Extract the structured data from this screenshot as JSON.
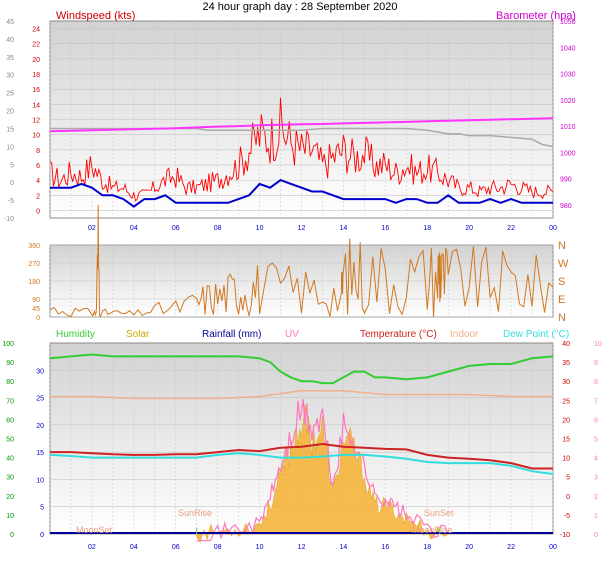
{
  "title": "24 hour graph day : 28 September 2020",
  "colors": {
    "wind_gust": "#ff0000",
    "wind_avg": "#0000cc",
    "barometer": "#ff33ff",
    "barometer_label": "#cc00cc",
    "gray_trace": "#aaaaaa",
    "direction": "#d07820",
    "humidity": "#33cc33",
    "solar": "#f5b030",
    "rainfall": "#000099",
    "uv": "#ff77bb",
    "temperature": "#cc2222",
    "indoor": "#f0b08a",
    "dewpoint": "#33dddd",
    "axis_blue": "#0000cc",
    "axis_gray": "#888888",
    "axis_green": "#009900",
    "axis_pink": "#ff77bb"
  },
  "time_ticks": [
    "02",
    "04",
    "06",
    "08",
    "10",
    "12",
    "14",
    "16",
    "18",
    "20",
    "22",
    "00"
  ],
  "chart_data": [
    {
      "type": "line",
      "id": "wind",
      "left_label": "Windspeed (kts)",
      "right_label": "Barometer (hpa)",
      "x_range_hours": [
        0,
        24
      ],
      "ylim_windspeed": [
        -1,
        25
      ],
      "ylim_barometer": [
        975,
        1050
      ],
      "ylim_gray_left": [
        -10,
        45
      ],
      "ticks_windspeed": [
        "0",
        "2",
        "4",
        "6",
        "8",
        "10",
        "12",
        "14",
        "16",
        "18",
        "20",
        "22",
        "24"
      ],
      "ticks_gray_left": [
        "-10",
        "-5",
        "0",
        "5",
        "10",
        "15",
        "20",
        "25",
        "30",
        "35",
        "40",
        "45"
      ],
      "ticks_barometer": [
        "980",
        "990",
        "1000",
        "1010",
        "1020",
        "1030",
        "1040",
        "1050"
      ],
      "series": [
        {
          "name": "",
          "key": "gust",
          "axis": "windspeed",
          "x": [
            0,
            0.5,
            1,
            1.5,
            2,
            2.5,
            3,
            3.5,
            4,
            4.5,
            5,
            5.5,
            6,
            6.5,
            7,
            7.5,
            8,
            8.5,
            9,
            9.5,
            10,
            10.5,
            11,
            11.5,
            12,
            12.5,
            13,
            13.5,
            14,
            14.5,
            15,
            15.5,
            16,
            16.5,
            17,
            17.5,
            18,
            18.5,
            19,
            19.5,
            20,
            20.5,
            21,
            21.5,
            22,
            22.5,
            23,
            23.5,
            24
          ],
          "y": [
            5,
            4,
            5,
            4.5,
            6,
            4,
            3,
            3,
            2,
            2,
            3,
            4,
            4.5,
            3,
            3,
            3.5,
            4,
            5,
            6,
            8,
            10,
            9.5,
            11,
            9,
            8,
            8,
            6,
            7,
            8,
            7,
            7.5,
            6,
            6,
            5,
            6,
            5,
            5.5,
            5,
            4,
            3,
            3,
            2.5,
            3,
            3,
            3.5,
            3,
            2.5,
            2.5,
            2.5
          ]
        },
        {
          "name": "",
          "key": "average",
          "axis": "windspeed",
          "x": [
            0,
            0.5,
            1,
            1.5,
            2,
            2.5,
            3,
            3.5,
            4,
            4.5,
            5,
            5.5,
            6,
            6.5,
            7,
            7.5,
            8,
            8.5,
            9,
            9.5,
            10,
            10.5,
            11,
            11.5,
            12,
            12.5,
            13,
            13.5,
            14,
            14.5,
            15,
            15.5,
            16,
            16.5,
            17,
            17.5,
            18,
            18.5,
            19,
            19.5,
            20,
            20.5,
            21,
            21.5,
            22,
            22.5,
            23,
            23.5,
            24
          ],
          "y": [
            3,
            3,
            3,
            3.5,
            3,
            2,
            2,
            1.5,
            0.5,
            1.5,
            1.5,
            2,
            1,
            1,
            1,
            1,
            1,
            1,
            1.5,
            2,
            3.5,
            3,
            4,
            3.5,
            3,
            2.5,
            2.5,
            2,
            1.5,
            1.5,
            1.5,
            1.5,
            1.5,
            1,
            1.5,
            1.5,
            1,
            1,
            2,
            1,
            1,
            1,
            1.5,
            1,
            1.5,
            1,
            1,
            1,
            1
          ]
        },
        {
          "name": "",
          "key": "gray",
          "axis": "gray_left",
          "x": [
            0,
            1,
            2,
            3,
            4,
            5,
            6,
            7,
            7.5,
            8,
            9,
            10,
            11,
            12,
            13,
            14,
            15,
            16,
            17,
            18,
            18.5,
            19,
            19.5,
            20,
            21,
            22,
            23,
            23.5,
            24
          ],
          "y": [
            15,
            15,
            15,
            15,
            15,
            15,
            15,
            15,
            14.5,
            14.5,
            14.5,
            14.5,
            14.5,
            14.5,
            15,
            15,
            15,
            15,
            15,
            14.5,
            14,
            13.5,
            13.5,
            13,
            13,
            12.5,
            12,
            10.5,
            10
          ]
        },
        {
          "name": "",
          "key": "barometer",
          "axis": "barometer",
          "x": [
            0,
            1,
            2,
            3,
            4,
            5,
            6,
            7,
            8,
            9,
            10,
            11,
            12,
            13,
            14,
            15,
            16,
            17,
            18,
            19,
            20,
            21,
            22,
            23,
            24
          ],
          "y": [
            1008,
            1008.2,
            1008.4,
            1008.6,
            1008.8,
            1009,
            1009.2,
            1009.5,
            1009.8,
            1010,
            1010.3,
            1010.5,
            1010.7,
            1010.8,
            1011,
            1011.2,
            1011.4,
            1011.6,
            1011.8,
            1012,
            1012.2,
            1012.4,
            1012.6,
            1012.8,
            1013
          ]
        }
      ]
    },
    {
      "type": "line",
      "id": "direction",
      "x_range_hours": [
        0,
        24
      ],
      "ylim": [
        0,
        360
      ],
      "ticks": [
        "0",
        "45",
        "90",
        "180",
        "270",
        "360"
      ],
      "compass_labels": [
        "N",
        "W",
        "S",
        "E",
        "N"
      ],
      "series": [
        {
          "name": "",
          "key": "direction",
          "x": [
            0,
            1,
            2,
            2.2,
            2.3,
            2.4,
            3,
            4,
            5,
            6,
            7,
            7.5,
            8,
            8.5,
            9,
            9.5,
            10,
            11,
            12,
            13,
            13.9,
            14,
            14.5,
            15,
            16,
            17,
            18,
            18.5,
            18.6,
            18.7,
            19,
            20,
            21,
            22,
            23,
            24
          ],
          "y": [
            40,
            30,
            20,
            20,
            340,
            20,
            20,
            15,
            35,
            45,
            70,
            95,
            100,
            115,
            140,
            145,
            145,
            140,
            130,
            130,
            100,
            200,
            210,
            210,
            200,
            195,
            195,
            200,
            270,
            195,
            190,
            180,
            175,
            170,
            160,
            150
          ]
        }
      ]
    },
    {
      "type": "line",
      "id": "temperature",
      "x_range_hours": [
        0,
        24
      ],
      "legend": [
        "Humidity",
        "Solar",
        "Rainfall (mm)",
        "UV",
        "Temperature (°C)",
        "Indoor",
        "Dew Point (°C)"
      ],
      "ylim_humidity": [
        0,
        100
      ],
      "ylim_temperature": [
        0,
        35
      ],
      "ylim_uv": [
        0,
        10
      ],
      "ylim_right_temp": [
        -10,
        40
      ],
      "ticks_humidity": [
        "0",
        "10",
        "20",
        "30",
        "40",
        "50",
        "60",
        "70",
        "80",
        "90",
        "100"
      ],
      "ticks_temperature": [
        "0",
        "5",
        "10",
        "15",
        "20",
        "25",
        "30"
      ],
      "ticks_right_temp": [
        "-10",
        "-5",
        "0",
        "5",
        "10",
        "15",
        "20",
        "25",
        "30",
        "35",
        "40"
      ],
      "ticks_uv": [
        "0",
        "1",
        "2",
        "3",
        "4",
        "5",
        "6",
        "7",
        "8",
        "9",
        "10"
      ],
      "annotations": [
        "MoonSet",
        "SunRise",
        "SunSet",
        "MoonRise"
      ],
      "series": [
        {
          "name": "Humidity",
          "key": "humidity",
          "axis": "humidity",
          "x": [
            0,
            1,
            2,
            3,
            4,
            5,
            6,
            7,
            8,
            9,
            10,
            10.5,
            11,
            11.5,
            12,
            12.5,
            13,
            13.5,
            14,
            14.5,
            15,
            15.5,
            16,
            17,
            18,
            19,
            20,
            21,
            22,
            23,
            24
          ],
          "y": [
            92,
            93,
            94,
            93,
            93,
            93,
            93,
            93,
            93,
            93,
            92,
            90,
            85,
            82,
            80,
            80,
            79,
            79,
            82,
            85,
            85,
            82,
            82,
            81,
            82,
            85,
            88,
            89,
            89,
            92,
            93
          ]
        },
        {
          "name": "Indoor",
          "key": "indoor",
          "axis": "humidity",
          "x": [
            0,
            2,
            4,
            6,
            8,
            10,
            12,
            14,
            16,
            18,
            20,
            22,
            24
          ],
          "y": [
            72,
            72,
            71,
            71,
            71,
            72,
            75,
            75,
            73,
            73,
            73,
            72,
            72
          ]
        },
        {
          "name": "Temperature (°C)",
          "key": "temperature",
          "axis": "temperature",
          "x": [
            0,
            1,
            2,
            3,
            4,
            5,
            6,
            7,
            8,
            9,
            10,
            11,
            12,
            13,
            14,
            15,
            16,
            17,
            18,
            19,
            20,
            21,
            22,
            23,
            24
          ],
          "y": [
            15,
            15,
            14.8,
            14.6,
            14.5,
            14.5,
            14.6,
            14.6,
            15,
            15.4,
            15.2,
            15.8,
            16,
            16.5,
            16,
            15.8,
            15.6,
            15.5,
            14.5,
            14,
            13.8,
            13.5,
            13,
            12,
            12
          ]
        },
        {
          "name": "Dew Point (°C)",
          "key": "dewpoint",
          "axis": "temperature",
          "x": [
            0,
            1,
            2,
            3,
            4,
            5,
            6,
            7,
            8,
            9,
            10,
            11,
            12,
            13,
            14,
            15,
            16,
            17,
            18,
            19,
            20,
            21,
            22,
            23,
            24
          ],
          "y": [
            14.5,
            14.3,
            14,
            14,
            14,
            14,
            14,
            14,
            14.5,
            14.8,
            14.5,
            14,
            14,
            14.2,
            14.5,
            14.5,
            14.2,
            13.8,
            13.2,
            13,
            13,
            13,
            12.5,
            11.5,
            11
          ]
        },
        {
          "name": "Solar",
          "key": "solar",
          "axis": "uv",
          "x": [
            7,
            8,
            9,
            10,
            10.5,
            11,
            11.5,
            12,
            12.5,
            13,
            13.5,
            14,
            14.5,
            15,
            15.5,
            16,
            16.5,
            17,
            18,
            19
          ],
          "y": [
            0,
            0.1,
            0.3,
            0.5,
            1.5,
            3,
            4.5,
            6,
            5,
            5.5,
            2,
            5,
            4.5,
            3,
            1.5,
            1.5,
            1.2,
            0.8,
            0.2,
            0
          ]
        },
        {
          "name": "UV",
          "key": "uv",
          "axis": "uv",
          "x": [
            7,
            8,
            9,
            10,
            10.5,
            11,
            11.5,
            12,
            12.5,
            13,
            13.5,
            14,
            14.5,
            15,
            15.5,
            16,
            16.5,
            17,
            18,
            19
          ],
          "y": [
            0,
            0.1,
            0.3,
            0.5,
            2,
            3.5,
            5,
            6.5,
            5.5,
            6,
            2.5,
            5.5,
            5,
            3.5,
            2,
            1.8,
            1.4,
            1,
            0.3,
            0
          ]
        }
      ]
    }
  ]
}
